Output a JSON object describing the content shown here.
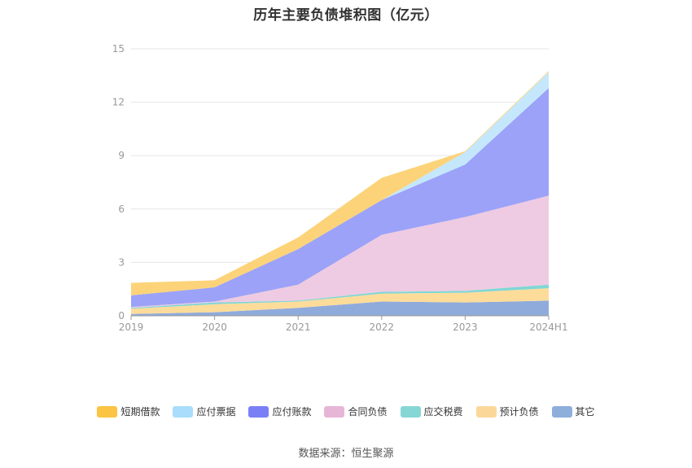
{
  "title": "历年主要负债堆积图（亿元）",
  "source": "数据来源：恒生聚源",
  "chart_data": {
    "type": "area",
    "stacked": true,
    "title": "历年主要负债堆积图（亿元）",
    "categories": [
      "2019",
      "2020",
      "2021",
      "2022",
      "2023",
      "2024H1"
    ],
    "ylim": [
      0,
      15
    ],
    "yticks": [
      0,
      3,
      6,
      9,
      12,
      15
    ],
    "grid": true,
    "legend_position": "bottom",
    "series": [
      {
        "name": "其它",
        "color": "#8fabdb",
        "values": [
          0.1,
          0.2,
          0.45,
          0.8,
          0.75,
          0.85
        ]
      },
      {
        "name": "预计负债",
        "color": "#fddc9a",
        "values": [
          0.3,
          0.45,
          0.35,
          0.45,
          0.55,
          0.7
        ]
      },
      {
        "name": "应交税费",
        "color": "#7fd7d5",
        "values": [
          0.05,
          0.1,
          0.05,
          0.1,
          0.1,
          0.2
        ]
      },
      {
        "name": "合同负债",
        "color": "#eecbe2",
        "values": [
          0.05,
          0.05,
          0.9,
          3.2,
          4.15,
          5.0
        ]
      },
      {
        "name": "应付账款",
        "color": "#9ba2f8",
        "values": [
          0.65,
          0.8,
          2.0,
          1.95,
          2.95,
          6.05
        ]
      },
      {
        "name": "应付票据",
        "color": "#c5e7fb",
        "values": [
          0.0,
          0.0,
          0.0,
          0.0,
          0.7,
          0.9
        ]
      },
      {
        "name": "短期借款",
        "color": "#fcd379",
        "values": [
          0.7,
          0.4,
          0.65,
          1.25,
          0.05,
          0.05
        ]
      }
    ],
    "legend_order": [
      "短期借款",
      "应付票据",
      "应付账款",
      "合同负债",
      "应交税费",
      "预计负债",
      "其它"
    ],
    "legend_colors": {
      "短期借款": "#fbc443",
      "应付票据": "#a9ddfb",
      "应付账款": "#7b7ff5",
      "合同负债": "#e7b6d6",
      "应交税费": "#87d6d6",
      "预计负债": "#fbd89a",
      "其它": "#8eaedc"
    }
  }
}
